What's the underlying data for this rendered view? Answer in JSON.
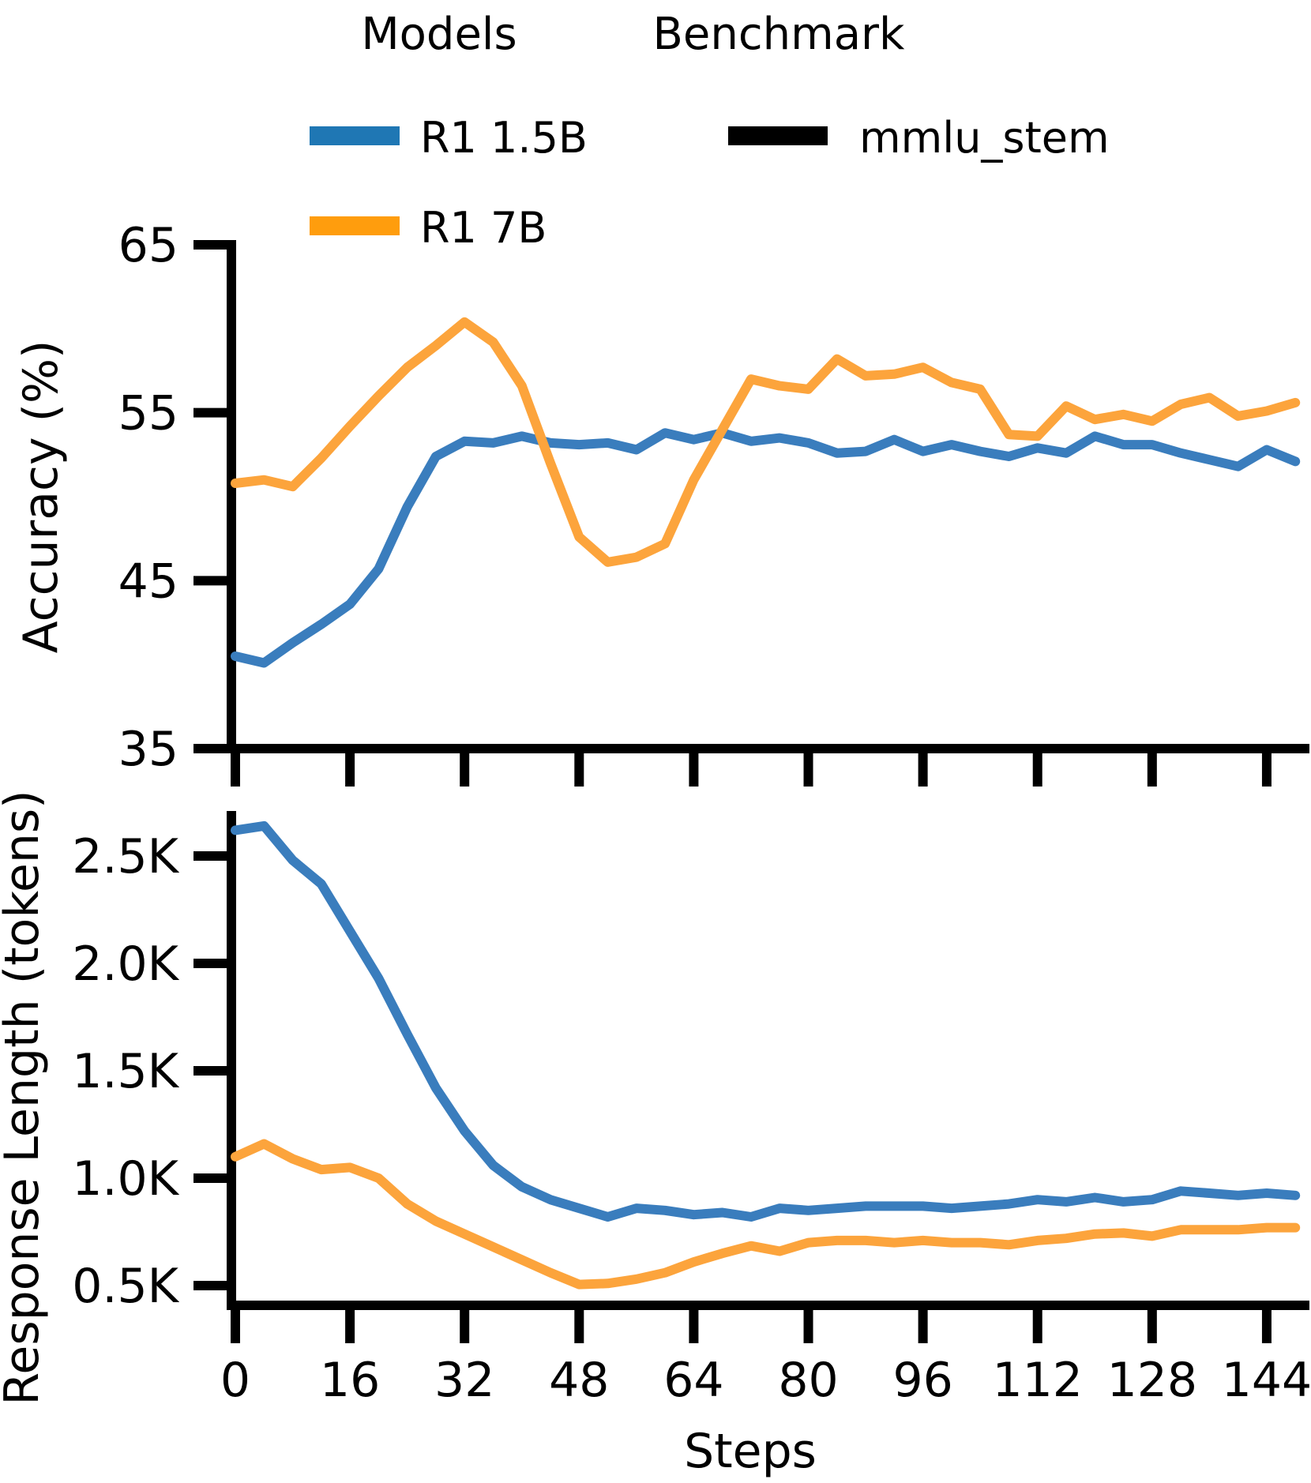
{
  "legend": {
    "columns": [
      {
        "title": "Models",
        "items": [
          {
            "label": "R1 1.5B",
            "color": "#1f77b4"
          },
          {
            "label": "R1 7B",
            "color": "#ff9d0d"
          }
        ]
      },
      {
        "title": "Benchmark",
        "items": [
          {
            "label": "mmlu_stem",
            "color": "#000000"
          }
        ]
      }
    ]
  },
  "chart_data": [
    {
      "type": "line",
      "title": "",
      "xlabel": "",
      "ylabel": "Accuracy (%)",
      "xlim": [
        0,
        150
      ],
      "ylim": [
        35,
        65
      ],
      "grid": false,
      "legend_position": "top-outside",
      "xticks": [
        0,
        16,
        32,
        48,
        64,
        80,
        96,
        112,
        128,
        144
      ],
      "xtick_labels_visible": false,
      "yticks": [
        {
          "value": 65,
          "label": "65"
        },
        {
          "value": 55,
          "label": "55"
        },
        {
          "value": 45,
          "label": "45"
        },
        {
          "value": 35,
          "label": "35"
        }
      ],
      "x": [
        0,
        4,
        8,
        12,
        16,
        20,
        24,
        28,
        32,
        36,
        40,
        44,
        48,
        52,
        56,
        60,
        64,
        68,
        72,
        76,
        80,
        84,
        88,
        92,
        96,
        100,
        104,
        108,
        112,
        116,
        120,
        124,
        128,
        132,
        136,
        140,
        144,
        148
      ],
      "series": [
        {
          "name": "R1 1.5B",
          "color": "#3a7dbd",
          "benchmark": "mmlu_stem",
          "values": [
            40.5,
            40.1,
            41.3,
            42.4,
            43.6,
            45.7,
            49.4,
            52.4,
            53.3,
            53.2,
            53.6,
            53.2,
            53.1,
            53.2,
            52.8,
            53.8,
            53.4,
            53.8,
            53.3,
            53.5,
            53.2,
            52.6,
            52.7,
            53.4,
            52.7,
            53.1,
            52.7,
            52.4,
            52.9,
            52.6,
            53.6,
            53.1,
            53.1,
            52.6,
            52.2,
            51.8,
            52.8,
            52.1
          ]
        },
        {
          "name": "R1 7B",
          "color": "#fca43c",
          "benchmark": "mmlu_stem",
          "values": [
            50.8,
            51.0,
            50.6,
            52.3,
            54.2,
            56.0,
            57.7,
            59.0,
            60.4,
            59.2,
            56.6,
            52.0,
            47.6,
            46.1,
            46.4,
            47.2,
            51.0,
            54.0,
            57.0,
            56.6,
            56.4,
            58.2,
            57.2,
            57.3,
            57.7,
            56.8,
            56.4,
            53.7,
            53.6,
            55.4,
            54.6,
            54.9,
            54.5,
            55.5,
            55.9,
            54.8,
            55.1,
            55.6
          ]
        }
      ]
    },
    {
      "type": "line",
      "title": "",
      "xlabel": "Steps",
      "ylabel": "Response Length (tokens)",
      "xlim": [
        0,
        150
      ],
      "ylim_tokens": [
        410,
        2710
      ],
      "grid": false,
      "xticks": [
        0,
        16,
        32,
        48,
        64,
        80,
        96,
        112,
        128,
        144
      ],
      "xtick_labels_visible": true,
      "yticks": [
        {
          "value": 2500,
          "label": "2.5K"
        },
        {
          "value": 2000,
          "label": "2.0K"
        },
        {
          "value": 1500,
          "label": "1.5K"
        },
        {
          "value": 1000,
          "label": "1.0K"
        },
        {
          "value": 500,
          "label": "0.5K"
        }
      ],
      "x": [
        0,
        4,
        8,
        12,
        16,
        20,
        24,
        28,
        32,
        36,
        40,
        44,
        48,
        52,
        56,
        60,
        64,
        68,
        72,
        76,
        80,
        84,
        88,
        92,
        96,
        100,
        104,
        108,
        112,
        116,
        120,
        124,
        128,
        132,
        136,
        140,
        144,
        148
      ],
      "series": [
        {
          "name": "R1 1.5B",
          "color": "#3a7dbd",
          "benchmark": "mmlu_stem",
          "values": [
            2620,
            2640,
            2480,
            2370,
            2150,
            1930,
            1670,
            1420,
            1220,
            1060,
            960,
            900,
            860,
            820,
            860,
            850,
            830,
            840,
            820,
            860,
            850,
            860,
            870,
            870,
            870,
            860,
            870,
            880,
            900,
            890,
            910,
            890,
            900,
            940,
            930,
            920,
            930,
            920
          ]
        },
        {
          "name": "R1 7B",
          "color": "#fca43c",
          "benchmark": "mmlu_stem",
          "values": [
            1100,
            1160,
            1090,
            1040,
            1050,
            1000,
            880,
            800,
            740,
            680,
            620,
            560,
            505,
            510,
            530,
            560,
            610,
            650,
            685,
            660,
            700,
            710,
            710,
            700,
            710,
            700,
            700,
            690,
            710,
            720,
            740,
            745,
            730,
            760,
            760,
            760,
            770,
            770
          ]
        }
      ]
    }
  ]
}
